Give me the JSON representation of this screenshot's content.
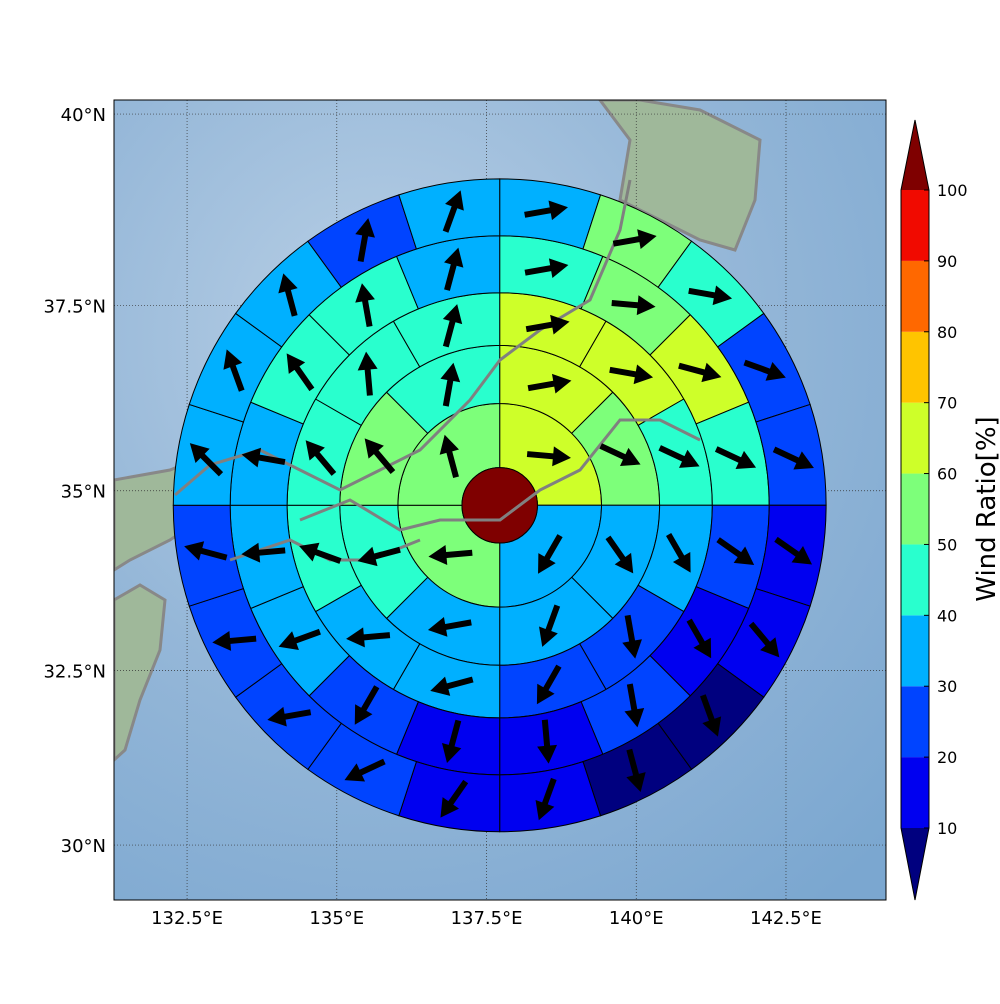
{
  "chart_data": {
    "type": "polar-grid-map",
    "xlim": [
      131.28,
      144.17
    ],
    "ylim": [
      29.2,
      40.18
    ],
    "xticks": [
      {
        "value": 132.5,
        "label": "132.5°E"
      },
      {
        "value": 135,
        "label": "135°E"
      },
      {
        "value": 137.5,
        "label": "137.5°E"
      },
      {
        "value": 140,
        "label": "140°E"
      },
      {
        "value": 142.5,
        "label": "142.5°E"
      }
    ],
    "yticks": [
      {
        "value": 30,
        "label": "30°N"
      },
      {
        "value": 32.5,
        "label": "32.5°N"
      },
      {
        "value": 35,
        "label": "35°N"
      },
      {
        "value": 37.5,
        "label": "37.5°N"
      },
      {
        "value": 40,
        "label": "40°N"
      }
    ],
    "grid": true,
    "center": {
      "lon": 137.72,
      "lat": 34.8,
      "radius": 0.63,
      "value": 100
    },
    "rings": [
      {
        "outer_radius": 1.7,
        "values": [
          65,
          35,
          55,
          55
        ],
        "directions": [
          95,
          210,
          265,
          345
        ]
      },
      {
        "outer_radius": 2.67,
        "values": [
          65,
          55,
          35,
          35,
          35,
          45,
          55,
          45
        ],
        "directions": [
          80,
          115,
          145,
          200,
          260,
          255,
          320,
          10
        ]
      },
      {
        "outer_radius": 3.55,
        "values": [
          65,
          65,
          45,
          35,
          25,
          25,
          35,
          35,
          45,
          45,
          45,
          45
        ],
        "directions": [
          80,
          100,
          115,
          150,
          170,
          210,
          255,
          265,
          290,
          320,
          355,
          15
        ]
      },
      {
        "outer_radius": 4.5,
        "values": [
          45,
          55,
          65,
          45,
          25,
          15,
          25,
          15,
          15,
          25,
          35,
          35,
          35,
          45,
          45,
          35
        ],
        "directions": [
          80,
          95,
          105,
          115,
          125,
          150,
          170,
          175,
          195,
          210,
          250,
          265,
          280,
          325,
          350,
          15
        ]
      },
      {
        "outer_radius": 5.45,
        "values": [
          35,
          55,
          45,
          25,
          25,
          15,
          15,
          5,
          5,
          15,
          15,
          25,
          25,
          25,
          25,
          35,
          35,
          35,
          25,
          35
        ],
        "directions": [
          80,
          80,
          100,
          110,
          115,
          125,
          140,
          160,
          165,
          200,
          215,
          245,
          260,
          265,
          285,
          315,
          340,
          345,
          10,
          20
        ]
      }
    ],
    "colorbar": {
      "label": "Wind Ratio[%]",
      "levels": [
        10,
        20,
        30,
        40,
        50,
        60,
        70,
        80,
        90,
        100
      ],
      "colors": [
        "#0000f0",
        "#0044ff",
        "#00b0ff",
        "#29ffce",
        "#7dff7a",
        "#ceff29",
        "#ffc400",
        "#ff6800",
        "#f10a00"
      ],
      "under_color": "#00007f",
      "over_color": "#7f0000"
    }
  }
}
